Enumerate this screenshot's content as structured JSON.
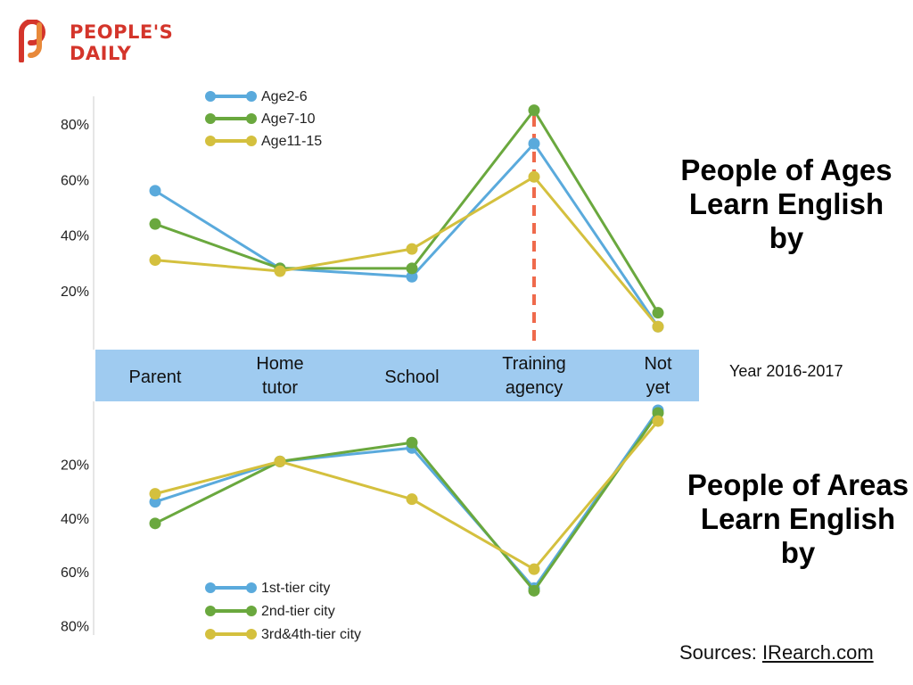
{
  "brand": {
    "line1": "PEOPLE'S",
    "line2": "DAILY",
    "color": "#d4352b",
    "accent": "#e8893a"
  },
  "titles": {
    "ages": "People of Ages Learn English by",
    "areas": "People of Areas Learn English by"
  },
  "year_label": "Year 2016-2017",
  "sources": {
    "prefix": "Sources: ",
    "link": "IRearch.com"
  },
  "colors": {
    "band": "#9fcbf0",
    "dashed_line": "#ef6a4c"
  },
  "categories": [
    "Parent",
    "Home tutor",
    "School",
    "Training agency",
    "Not yet"
  ],
  "highlighted_category": "Training agency",
  "chart_data": [
    {
      "type": "line",
      "title": "People of Ages Learn English by",
      "categories": [
        "Parent",
        "Home tutor",
        "School",
        "Training agency",
        "Not yet"
      ],
      "y_tick_labels": [
        "20%",
        "40%",
        "60%",
        "80%"
      ],
      "y_ticks": [
        20,
        40,
        60,
        80
      ],
      "ylim": [
        -8,
        86
      ],
      "orientation": "upward",
      "legend_position": "top-left",
      "series": [
        {
          "name": "Age2-6",
          "color": "#5aaadc",
          "values": [
            56,
            28,
            25,
            73,
            7
          ]
        },
        {
          "name": "Age7-10",
          "color": "#6aa83e",
          "values": [
            44,
            28,
            28,
            85,
            12
          ]
        },
        {
          "name": "Age11-15",
          "color": "#d4c03e",
          "values": [
            31,
            27,
            35,
            61,
            7
          ]
        }
      ]
    },
    {
      "type": "line",
      "title": "People of Areas Learn English by",
      "categories": [
        "Parent",
        "Home tutor",
        "School",
        "Training agency",
        "Not yet"
      ],
      "y_tick_labels": [
        "20%",
        "40%",
        "60%",
        "80%"
      ],
      "y_ticks": [
        20,
        40,
        60,
        80
      ],
      "ylim": [
        0,
        86
      ],
      "orientation": "downward",
      "legend_position": "bottom-left",
      "series": [
        {
          "name": "1st-tier city",
          "color": "#5aaadc",
          "values": [
            34,
            19,
            14,
            66,
            0
          ]
        },
        {
          "name": "2nd-tier city",
          "color": "#6aa83e",
          "values": [
            42,
            19,
            12,
            67,
            1
          ]
        },
        {
          "name": "3rd&4th-tier city",
          "color": "#d4c03e",
          "values": [
            31,
            19,
            33,
            59,
            4
          ]
        }
      ]
    }
  ]
}
